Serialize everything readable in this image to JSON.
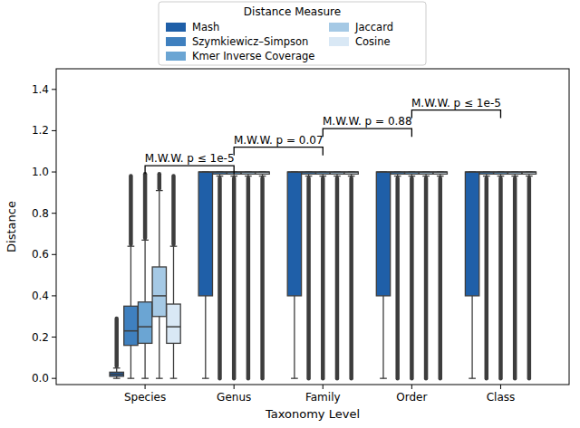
{
  "chart_data": {
    "type": "box",
    "x_label": "Taxonomy Level",
    "y_label": "Distance",
    "legend_title": "Distance Measure",
    "legend": "top",
    "categories": [
      "Species",
      "Genus",
      "Family",
      "Order",
      "Class"
    ],
    "ylim": [
      -0.03,
      1.5
    ],
    "yticks": [
      {
        "value": 0,
        "label": "0.0"
      },
      {
        "value": 0.2,
        "label": "0.2"
      },
      {
        "value": 0.4,
        "label": "0.4"
      },
      {
        "value": 0.6,
        "label": "0.6"
      },
      {
        "value": 0.8,
        "label": "0.8"
      },
      {
        "value": 1,
        "label": "1.0"
      },
      {
        "value": 1.2,
        "label": "1.2"
      },
      {
        "value": 1.4,
        "label": "1.4"
      }
    ],
    "series": [
      {
        "name": "Mash",
        "color": "#1f5fa8",
        "values": [
          {
            "min": 0,
            "q1": 0.01,
            "median": 0.02,
            "q3": 0.03,
            "max": 0.05,
            "outlier_range": [
              0.06,
              0.29
            ]
          },
          {
            "min": 0,
            "q1": 0.4,
            "median": 1,
            "q3": 1,
            "max": 1
          },
          {
            "min": 0,
            "q1": 0.4,
            "median": 1,
            "q3": 1,
            "max": 1
          },
          {
            "min": 0,
            "q1": 0.4,
            "median": 1,
            "q3": 1,
            "max": 1
          },
          {
            "min": 0,
            "q1": 0.4,
            "median": 1,
            "q3": 1,
            "max": 1
          }
        ]
      },
      {
        "name": "Szymkiewicz–Simpson",
        "color": "#3f80bf",
        "values": [
          {
            "min": 0,
            "q1": 0.16,
            "median": 0.23,
            "q3": 0.35,
            "max": 0.64,
            "outlier_range": [
              0.65,
              0.98
            ]
          },
          {
            "min": 0.98,
            "q1": 0.99,
            "median": 1,
            "q3": 1,
            "max": 1,
            "outlier_range": [
              0,
              0.97
            ]
          },
          {
            "min": 0.98,
            "q1": 0.99,
            "median": 1,
            "q3": 1,
            "max": 1,
            "outlier_range": [
              0,
              0.97
            ]
          },
          {
            "min": 0.98,
            "q1": 0.99,
            "median": 1,
            "q3": 1,
            "max": 1,
            "outlier_range": [
              0,
              0.97
            ]
          },
          {
            "min": 0.98,
            "q1": 0.99,
            "median": 1,
            "q3": 1,
            "max": 1,
            "outlier_range": [
              0,
              0.97
            ]
          }
        ]
      },
      {
        "name": "Kmer Inverse Coverage",
        "color": "#6ba5d3",
        "values": [
          {
            "min": 0,
            "q1": 0.17,
            "median": 0.25,
            "q3": 0.37,
            "max": 0.67,
            "outlier_range": [
              0.68,
              0.99
            ]
          },
          {
            "min": 0.98,
            "q1": 0.99,
            "median": 1,
            "q3": 1,
            "max": 1,
            "outlier_range": [
              0,
              0.97
            ]
          },
          {
            "min": 0.98,
            "q1": 0.99,
            "median": 1,
            "q3": 1,
            "max": 1,
            "outlier_range": [
              0,
              0.97
            ]
          },
          {
            "min": 0.98,
            "q1": 0.99,
            "median": 1,
            "q3": 1,
            "max": 1,
            "outlier_range": [
              0,
              0.97
            ]
          },
          {
            "min": 0.98,
            "q1": 0.99,
            "median": 1,
            "q3": 1,
            "max": 1,
            "outlier_range": [
              0,
              0.97
            ]
          }
        ]
      },
      {
        "name": "Jaccard",
        "color": "#a5c9e5",
        "values": [
          {
            "min": 0,
            "q1": 0.3,
            "median": 0.4,
            "q3": 0.54,
            "max": 0.91,
            "outlier_range": [
              0.92,
              0.99
            ]
          },
          {
            "min": 0.98,
            "q1": 0.99,
            "median": 1,
            "q3": 1,
            "max": 1,
            "outlier_range": [
              0,
              0.97
            ]
          },
          {
            "min": 0.98,
            "q1": 0.99,
            "median": 1,
            "q3": 1,
            "max": 1,
            "outlier_range": [
              0,
              0.97
            ]
          },
          {
            "min": 0.98,
            "q1": 0.99,
            "median": 1,
            "q3": 1,
            "max": 1,
            "outlier_range": [
              0,
              0.97
            ]
          },
          {
            "min": 0.98,
            "q1": 0.99,
            "median": 1,
            "q3": 1,
            "max": 1,
            "outlier_range": [
              0,
              0.97
            ]
          }
        ]
      },
      {
        "name": "Cosine",
        "color": "#d9e8f5",
        "values": [
          {
            "min": 0,
            "q1": 0.17,
            "median": 0.25,
            "q3": 0.36,
            "max": 0.64,
            "outlier_range": [
              0.65,
              0.98
            ]
          },
          {
            "min": 0.98,
            "q1": 0.99,
            "median": 1,
            "q3": 1,
            "max": 1,
            "outlier_range": [
              0,
              0.97
            ]
          },
          {
            "min": 0.98,
            "q1": 0.99,
            "median": 1,
            "q3": 1,
            "max": 1,
            "outlier_range": [
              0,
              0.97
            ]
          },
          {
            "min": 0.98,
            "q1": 0.99,
            "median": 1,
            "q3": 1,
            "max": 1,
            "outlier_range": [
              0,
              0.97
            ]
          },
          {
            "min": 0.98,
            "q1": 0.99,
            "median": 1,
            "q3": 1,
            "max": 1,
            "outlier_range": [
              0,
              0.97
            ]
          }
        ]
      }
    ],
    "annotations": [
      {
        "text": "M.W.W. p ≤ 1e-5",
        "from": "Species",
        "to": "Genus",
        "y": 1.03
      },
      {
        "text": "M.W.W. p = 0.07",
        "from": "Genus",
        "to": "Family",
        "y": 1.12
      },
      {
        "text": "M.W.W. p = 0.88",
        "from": "Family",
        "to": "Order",
        "y": 1.21
      },
      {
        "text": "M.W.W. p ≤ 1e-5",
        "from": "Order",
        "to": "Class",
        "y": 1.3
      }
    ]
  }
}
